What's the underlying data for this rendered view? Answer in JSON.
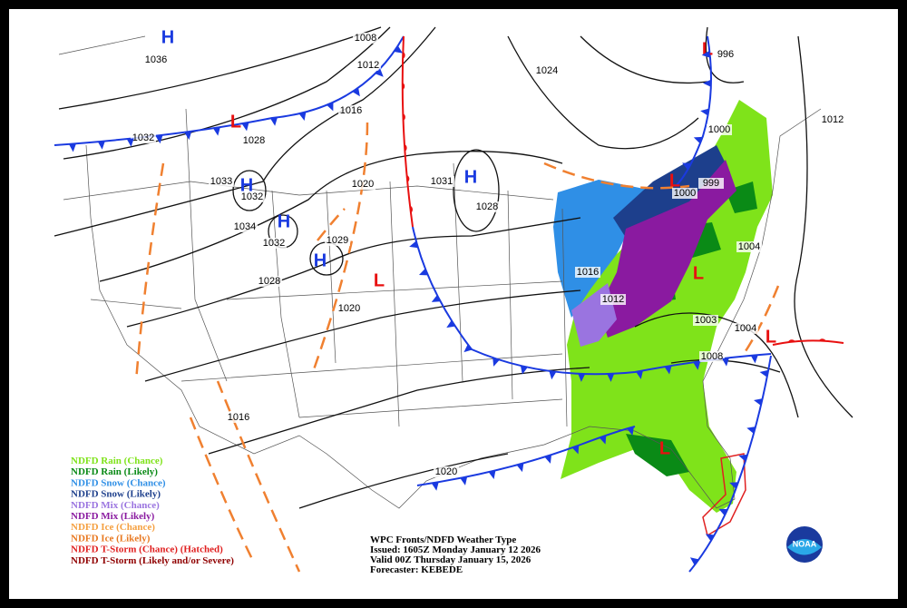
{
  "legend": [
    {
      "label": "NDFD Rain (Chance)",
      "color": "#7fe31a"
    },
    {
      "label": "NDFD Rain (Likely)",
      "color": "#0a8a16"
    },
    {
      "label": "NDFD Snow (Chance)",
      "color": "#2f8fe6"
    },
    {
      "label": "NDFD Snow (Likely)",
      "color": "#1d3f8c"
    },
    {
      "label": "NDFD Mix (Chance)",
      "color": "#9a74e0"
    },
    {
      "label": "NDFD Mix (Likely)",
      "color": "#8a1aa0"
    },
    {
      "label": "NDFD Ice (Chance)",
      "color": "#f5a040"
    },
    {
      "label": "NDFD Ice (Likely)",
      "color": "#e87820"
    },
    {
      "label": "NDFD T-Storm (Chance) (Hatched)",
      "color": "#e02020"
    },
    {
      "label": "NDFD T-Storm (Likely and/or Severe)",
      "color": "#900000"
    }
  ],
  "pressure_centers": [
    "H",
    "H",
    "H",
    "H",
    "H",
    "L",
    "L",
    "L",
    "L",
    "L",
    "L",
    "L"
  ],
  "isobar_labels": [
    1036,
    1032,
    1028,
    1033,
    1032,
    1034,
    1032,
    1028,
    1029,
    1020,
    1020,
    1031,
    1028,
    1008,
    1012,
    1016,
    1024,
    996,
    1000,
    1012,
    1000,
    999,
    1004,
    1016,
    1012,
    1003,
    1004,
    1008,
    1016,
    1020
  ],
  "info": [
    "WPC Fronts/NDFD Weather Type",
    "Issued: 1605Z Monday January 12 2026",
    "Valid 00Z Thursday January 15, 2026",
    "Forecaster: KEBEDE"
  ],
  "logo": "NOAA"
}
